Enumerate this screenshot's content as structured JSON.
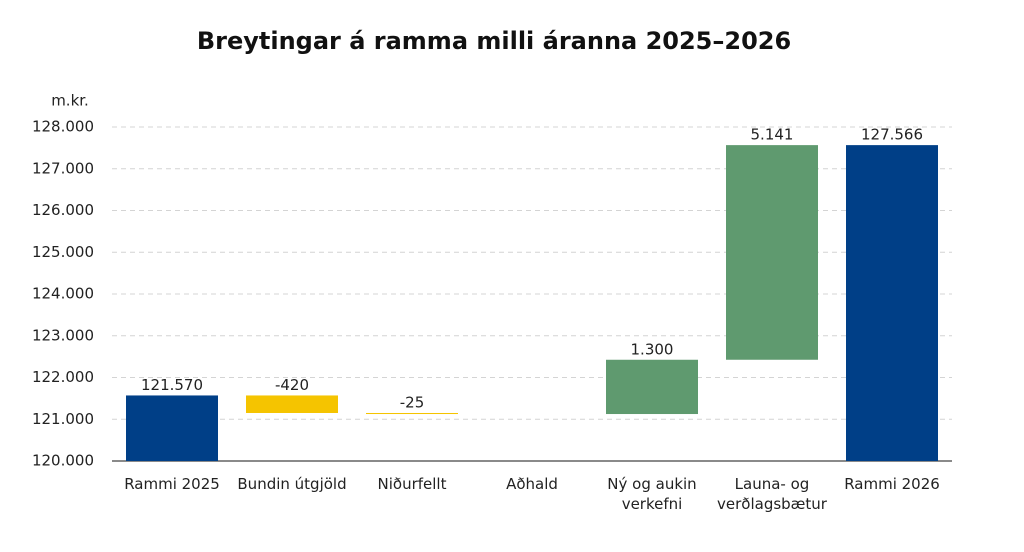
{
  "chart_data": {
    "type": "waterfall",
    "title": "Breytingar á ramma milli áranna 2025–2026",
    "ylabel": "m.kr.",
    "categories": [
      "Rammi 2025",
      "Bundin útgjöld",
      "Niðurfellt",
      "Aðhald",
      "Ný og aukin verkefni",
      "Launa- og verðlagsbætur",
      "Rammi 2026"
    ],
    "values": [
      121570,
      -420,
      -25,
      0,
      1300,
      5141,
      127566
    ],
    "value_labels": [
      "121.570",
      "-420",
      "-25",
      null,
      "1.300",
      "5.141",
      "127.566"
    ],
    "totals": [
      true,
      false,
      false,
      false,
      false,
      false,
      true
    ],
    "colors": [
      "#003f87",
      "#f5c400",
      "#f5c400",
      "#f5c400",
      "#5f9a6f",
      "#5f9a6f",
      "#003f87"
    ],
    "ylim": [
      120000,
      128000
    ],
    "yticks": [
      {
        "value": 120000,
        "label": "120.000"
      },
      {
        "value": 121000,
        "label": "121.000"
      },
      {
        "value": 122000,
        "label": "122.000"
      },
      {
        "value": 123000,
        "label": "123.000"
      },
      {
        "value": 124000,
        "label": "124.000"
      },
      {
        "value": 125000,
        "label": "125.000"
      },
      {
        "value": 126000,
        "label": "126.000"
      },
      {
        "value": 127000,
        "label": "127.000"
      },
      {
        "value": 128000,
        "label": "128.000"
      }
    ],
    "grid": true
  }
}
